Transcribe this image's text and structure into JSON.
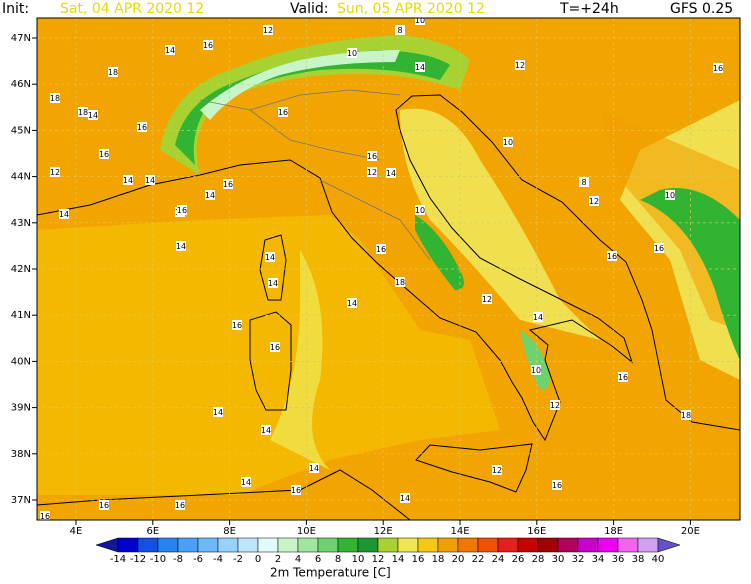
{
  "header": {
    "init_label": "Init:",
    "init_value": "Sat, 04 APR 2020  12",
    "valid_label": "Valid:",
    "valid_value": "Sun, 05 APR 2020  12",
    "lead": "T=+24h",
    "model": "GFS 0.25"
  },
  "lat_labels": [
    "47N",
    "46N",
    "45N",
    "44N",
    "43N",
    "42N",
    "41N",
    "40N",
    "39N",
    "38N",
    "37N"
  ],
  "lon_labels": [
    "4E",
    "6E",
    "8E",
    "10E",
    "12E",
    "14E",
    "16E",
    "18E",
    "20E"
  ],
  "colorbar": {
    "title": "2m Temperature [C]",
    "labels": [
      "-14",
      "-12",
      "-10",
      "-8",
      "-6",
      "-4",
      "-2",
      "0",
      "2",
      "4",
      "6",
      "8",
      "10",
      "12",
      "14",
      "16",
      "18",
      "20",
      "22",
      "24",
      "26",
      "28",
      "30",
      "32",
      "34",
      "36",
      "38",
      "40"
    ],
    "colors": [
      "#1414a0",
      "#0000d0",
      "#1450e6",
      "#2882f0",
      "#4ba0f5",
      "#6eb9f8",
      "#96d2fa",
      "#bee6fa",
      "#e1fafa",
      "#c8f5c8",
      "#a0e6a0",
      "#6ed26e",
      "#32b432",
      "#1e9632",
      "#a8d232",
      "#f0e650",
      "#f5c814",
      "#f0a000",
      "#f07800",
      "#f05000",
      "#e61e1e",
      "#c80000",
      "#a00000",
      "#b4005a",
      "#c800c8",
      "#f000f0",
      "#f064f0",
      "#d2a0f0",
      "#6450c8"
    ]
  },
  "contour_labels": [
    "14",
    "16",
    "18",
    "18",
    "18",
    "14",
    "16",
    "16",
    "12",
    "14",
    "14",
    "14",
    "14",
    "14",
    "14",
    "16",
    "16",
    "12",
    "10",
    "8",
    "10",
    "12",
    "14",
    "16",
    "16",
    "16",
    "12",
    "14",
    "10",
    "16",
    "18",
    "14",
    "12",
    "14",
    "10",
    "12",
    "16",
    "18",
    "14",
    "14",
    "14",
    "14",
    "16",
    "12",
    "16",
    "14",
    "16",
    "16",
    "16",
    "10",
    "8",
    "12",
    "10",
    "16",
    "16",
    "16",
    "16",
    "14",
    "14"
  ]
}
